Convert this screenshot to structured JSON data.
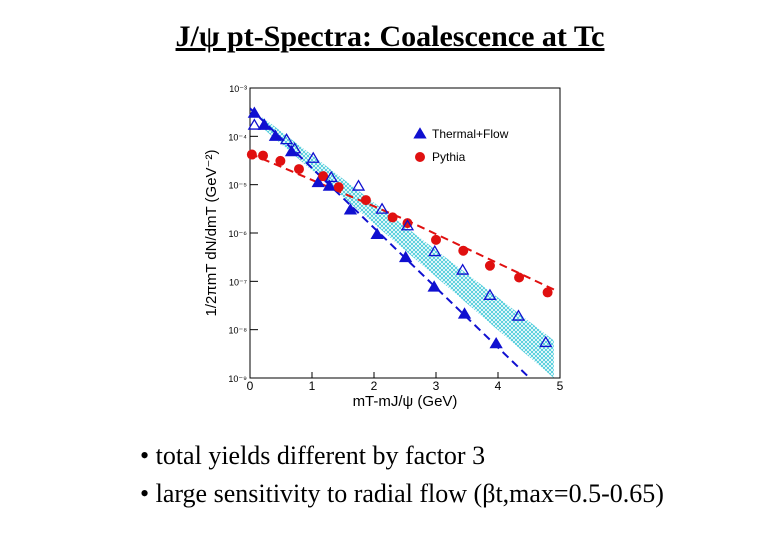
{
  "slide": {
    "title": "J/ψ  pt-Spectra:  Coalescence at Tc",
    "bullets": [
      "• total yields different by factor 3",
      "• large sensitivity to radial flow (βt,max=0.5-0.65)"
    ]
  },
  "chart_data": {
    "type": "scatter",
    "x_label": "mT-mJ/ψ (GeV)",
    "y_label": "1/2πmT dN/dmT  (GeV⁻²)",
    "xlim": [
      0,
      5
    ],
    "ylim": [
      1e-09,
      0.001
    ],
    "log_y": true,
    "xticks": [
      0,
      1,
      2,
      3,
      4,
      5
    ],
    "yticks": [
      {
        "value": 1e-09,
        "label": "10⁻⁹"
      },
      {
        "value": 1e-08,
        "label": "10⁻⁸"
      },
      {
        "value": 1e-07,
        "label": "10⁻⁷"
      },
      {
        "value": 1e-06,
        "label": "10⁻⁶"
      },
      {
        "value": 1e-05,
        "label": "10⁻⁵"
      },
      {
        "value": 0.0001,
        "label": "10⁻⁴"
      },
      {
        "value": 0.001,
        "label": "10⁻³"
      }
    ],
    "legend": "upper right",
    "series": [
      {
        "name": "Thermal+Flow",
        "color": "#1010d0",
        "marker": "triangle",
        "filled": true,
        "x": [
          0.07,
          0.23,
          0.41,
          0.67,
          1.1,
          1.28,
          1.62,
          2.05,
          2.51,
          2.97,
          3.46,
          3.97
        ],
        "values": [
          0.0003,
          0.00017,
          0.0001,
          4.8e-05,
          1.1e-05,
          9.3e-06,
          3e-06,
          9.3e-07,
          3.1e-07,
          7.6e-08,
          2.1e-08,
          5.1e-09
        ]
      },
      {
        "name": "Pythia",
        "color": "#e01010",
        "marker": "circle",
        "filled": true,
        "x": [
          0.03,
          0.21,
          0.49,
          0.79,
          1.18,
          1.43,
          1.87,
          2.3,
          2.54,
          3.0,
          3.44,
          3.87,
          4.34,
          4.8
        ],
        "values": [
          4.2e-05,
          4e-05,
          3.1e-05,
          2.1e-05,
          1.5e-05,
          8.9e-06,
          4.8e-06,
          2.1e-06,
          1.6e-06,
          7.2e-07,
          4.3e-07,
          2.1e-07,
          1.2e-07,
          5.9e-08
        ]
      },
      {
        "color": "#1010d0",
        "marker": "triangle",
        "filled": false,
        "x": [
          0.07,
          0.23,
          0.59,
          0.72,
          1.02,
          1.31,
          1.75,
          2.13,
          2.54,
          2.98,
          3.43,
          3.87,
          4.33,
          4.77
        ],
        "values": [
          0.00017,
          0.00017,
          8.5e-05,
          5.5e-05,
          3.5e-05,
          1.4e-05,
          9.3e-06,
          3.1e-06,
          1.4e-06,
          4.1e-07,
          1.7e-07,
          5.1e-08,
          1.9e-08,
          5.4e-09
        ]
      }
    ],
    "fits": [
      {
        "color": "#1010d0",
        "x": [
          0,
          4.51
        ],
        "values": [
          0.00038,
          1e-09
        ]
      },
      {
        "color": "#e01010",
        "x": [
          0,
          2.5,
          4.92
        ],
        "values": [
          4.4e-05,
          1.9e-06,
          6.6e-08
        ]
      }
    ],
    "band": {
      "color": "#40c8d8",
      "x": [
        0.2,
        4.9
      ],
      "upper": [
        0.00025,
        6e-09
      ],
      "lower": [
        0.00015,
        1e-09
      ]
    }
  }
}
